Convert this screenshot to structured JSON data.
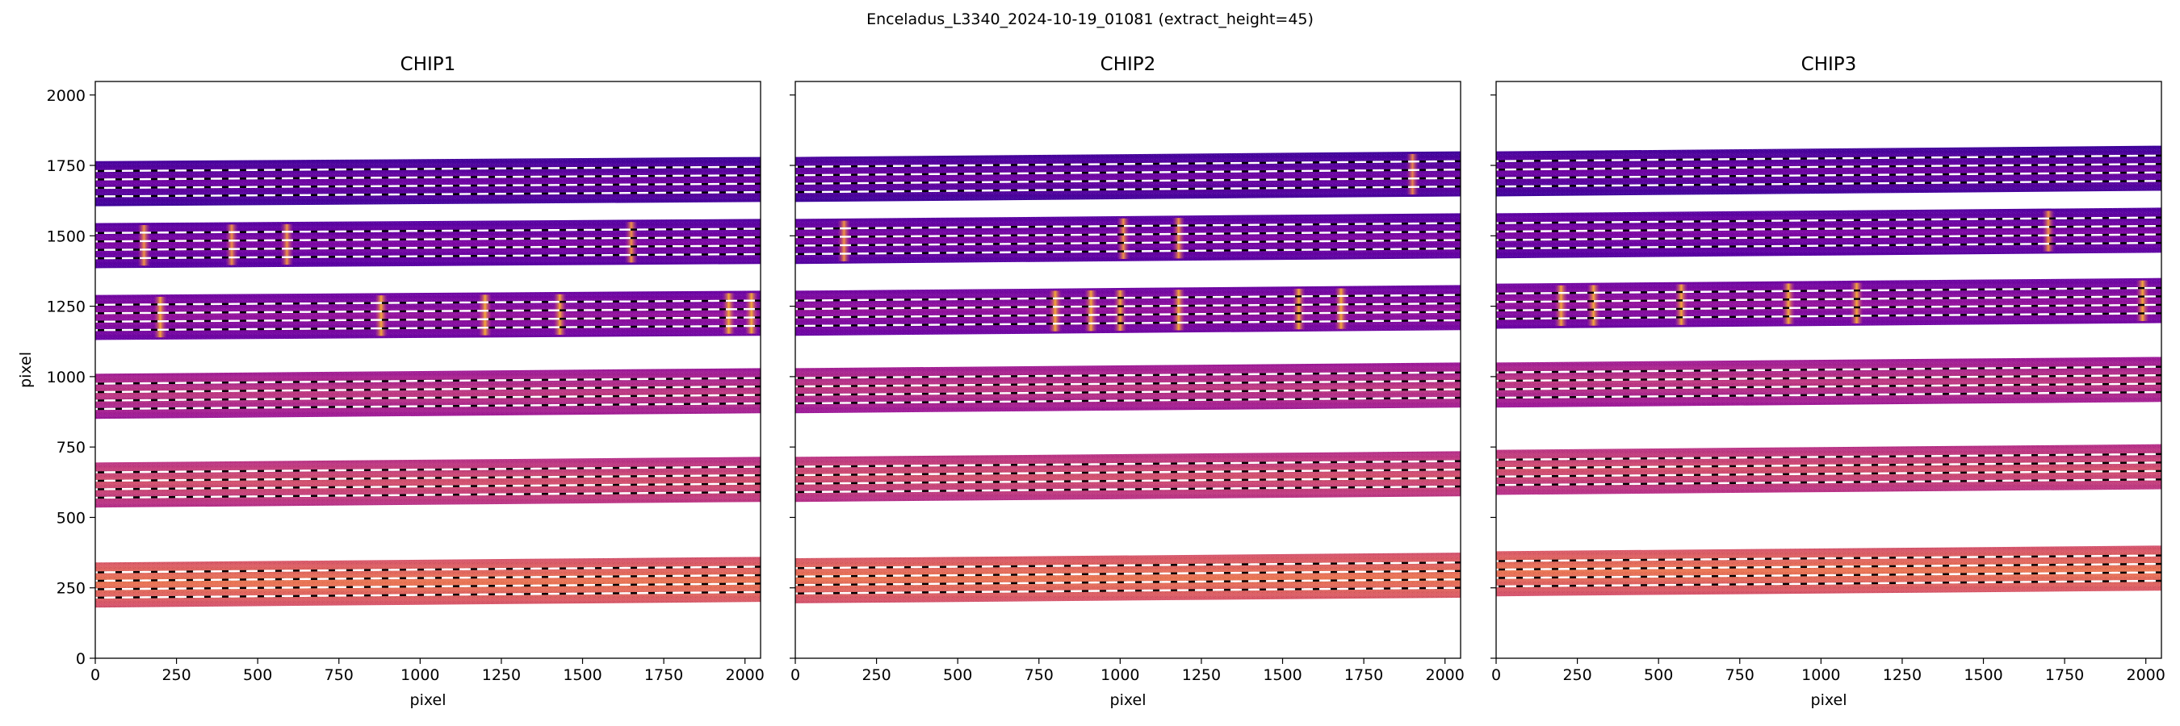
{
  "figure": {
    "suptitle": "Enceladus_L3340_2024-10-19_01081  (extract_height=45)"
  },
  "chart_data": [
    {
      "type": "heatmap",
      "title": "CHIP1",
      "xlabel": "pixel",
      "ylabel": "pixel",
      "xlim": [
        0,
        2048
      ],
      "ylim": [
        0,
        2048
      ],
      "xticks": [
        0,
        250,
        500,
        750,
        1000,
        1250,
        1500,
        1750,
        2000
      ],
      "yticks": [
        0,
        250,
        500,
        750,
        1000,
        1250,
        1500,
        1750,
        2000
      ],
      "ytick_labels_shown": true,
      "colormap": "plasma",
      "orders": [
        {
          "center_left": 1685,
          "center_right": 1700,
          "half_height": 80,
          "level": 0.18,
          "bright_columns": []
        },
        {
          "center_left": 1465,
          "center_right": 1480,
          "half_height": 80,
          "level": 0.22,
          "bright_columns": [
            150,
            420,
            590,
            1650
          ]
        },
        {
          "center_left": 1210,
          "center_right": 1225,
          "half_height": 80,
          "level": 0.28,
          "bright_columns": [
            200,
            880,
            1200,
            1430,
            1950,
            2020
          ]
        },
        {
          "center_left": 930,
          "center_right": 950,
          "half_height": 80,
          "level": 0.42,
          "bright_columns": []
        },
        {
          "center_left": 615,
          "center_right": 635,
          "half_height": 80,
          "level": 0.5,
          "bright_columns": []
        },
        {
          "center_left": 260,
          "center_right": 280,
          "half_height": 80,
          "level": 0.62,
          "bright_columns": []
        }
      ]
    },
    {
      "type": "heatmap",
      "title": "CHIP2",
      "xlabel": "pixel",
      "ylabel": "",
      "xlim": [
        0,
        2048
      ],
      "ylim": [
        0,
        2048
      ],
      "xticks": [
        0,
        250,
        500,
        750,
        1000,
        1250,
        1500,
        1750,
        2000
      ],
      "yticks": [
        0,
        250,
        500,
        750,
        1000,
        1250,
        1500,
        1750,
        2000
      ],
      "ytick_labels_shown": false,
      "colormap": "plasma",
      "orders": [
        {
          "center_left": 1700,
          "center_right": 1720,
          "half_height": 80,
          "level": 0.18,
          "bright_columns": [
            1900
          ]
        },
        {
          "center_left": 1480,
          "center_right": 1500,
          "half_height": 80,
          "level": 0.22,
          "bright_columns": [
            150,
            1010,
            1180
          ]
        },
        {
          "center_left": 1225,
          "center_right": 1245,
          "half_height": 80,
          "level": 0.28,
          "bright_columns": [
            800,
            910,
            1000,
            1180,
            1550,
            1680
          ]
        },
        {
          "center_left": 950,
          "center_right": 970,
          "half_height": 80,
          "level": 0.42,
          "bright_columns": []
        },
        {
          "center_left": 635,
          "center_right": 655,
          "half_height": 80,
          "level": 0.5,
          "bright_columns": []
        },
        {
          "center_left": 275,
          "center_right": 295,
          "half_height": 80,
          "level": 0.62,
          "bright_columns": []
        }
      ]
    },
    {
      "type": "heatmap",
      "title": "CHIP3",
      "xlabel": "pixel",
      "ylabel": "",
      "xlim": [
        0,
        2048
      ],
      "ylim": [
        0,
        2048
      ],
      "xticks": [
        0,
        250,
        500,
        750,
        1000,
        1250,
        1500,
        1750,
        2000
      ],
      "yticks": [
        0,
        250,
        500,
        750,
        1000,
        1250,
        1500,
        1750,
        2000
      ],
      "ytick_labels_shown": false,
      "colormap": "plasma",
      "orders": [
        {
          "center_left": 1720,
          "center_right": 1740,
          "half_height": 80,
          "level": 0.18,
          "bright_columns": []
        },
        {
          "center_left": 1500,
          "center_right": 1520,
          "half_height": 80,
          "level": 0.22,
          "bright_columns": [
            1700
          ]
        },
        {
          "center_left": 1250,
          "center_right": 1270,
          "half_height": 80,
          "level": 0.28,
          "bright_columns": [
            200,
            300,
            570,
            900,
            1110,
            1990
          ]
        },
        {
          "center_left": 970,
          "center_right": 990,
          "half_height": 80,
          "level": 0.42,
          "bright_columns": []
        },
        {
          "center_left": 660,
          "center_right": 680,
          "half_height": 80,
          "level": 0.5,
          "bright_columns": []
        },
        {
          "center_left": 300,
          "center_right": 320,
          "half_height": 80,
          "level": 0.62,
          "bright_columns": []
        }
      ]
    }
  ]
}
